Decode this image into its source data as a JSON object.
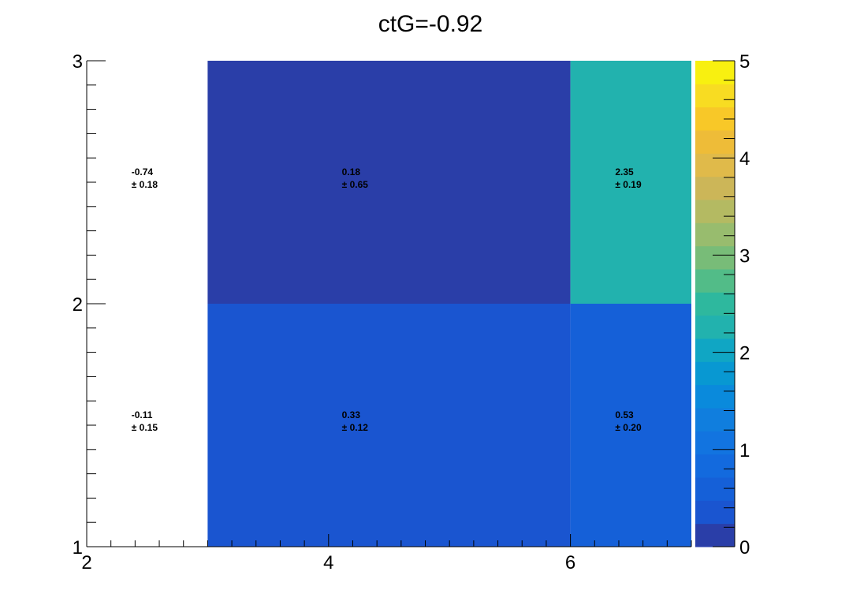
{
  "chart_data": {
    "type": "heatmap",
    "title": "ctG=-0.92",
    "x_bin_edges": [
      2,
      3,
      6,
      7
    ],
    "y_bin_edges": [
      1,
      2,
      3
    ],
    "xlim": [
      2,
      7
    ],
    "ylim": [
      1,
      3
    ],
    "x_ticks": [
      2,
      4,
      6
    ],
    "y_ticks": [
      1,
      2,
      3
    ],
    "z_range": [
      0,
      5
    ],
    "z_ticks": [
      0,
      1,
      2,
      3,
      4,
      5
    ],
    "colorbar_position": "right",
    "cells": [
      {
        "x_bin": [
          2,
          3
        ],
        "y_bin": [
          1,
          2
        ],
        "value": -0.11,
        "error": 0.15,
        "label": "-0.11",
        "error_label": "± 0.15"
      },
      {
        "x_bin": [
          3,
          6
        ],
        "y_bin": [
          1,
          2
        ],
        "value": 0.33,
        "error": 0.12,
        "label": "0.33",
        "error_label": "± 0.12"
      },
      {
        "x_bin": [
          6,
          7
        ],
        "y_bin": [
          1,
          2
        ],
        "value": 0.53,
        "error": 0.2,
        "label": "0.53",
        "error_label": "± 0.20"
      },
      {
        "x_bin": [
          2,
          3
        ],
        "y_bin": [
          2,
          3
        ],
        "value": -0.74,
        "error": 0.18,
        "label": "-0.74",
        "error_label": "± 0.18"
      },
      {
        "x_bin": [
          3,
          6
        ],
        "y_bin": [
          2,
          3
        ],
        "value": 0.18,
        "error": 0.65,
        "label": "0.18",
        "error_label": "± 0.65"
      },
      {
        "x_bin": [
          6,
          7
        ],
        "y_bin": [
          2,
          3
        ],
        "value": 2.35,
        "error": 0.19,
        "label": "2.35",
        "error_label": "± 0.19"
      }
    ],
    "palette": [
      "#2a3ea8",
      "#1a55d0",
      "#1560d8",
      "#136ade",
      "#1274e0",
      "#107ede",
      "#0a8adc",
      "#0898d2",
      "#10a6c4",
      "#22b2ae",
      "#2eb89e",
      "#52bc88",
      "#78bc78",
      "#98bc6e",
      "#b4ba62",
      "#ccb658",
      "#e0ba4a",
      "#eebc38",
      "#f8c828",
      "#f8dc22",
      "#f8f010"
    ],
    "underflow_color": "#ffffff"
  }
}
